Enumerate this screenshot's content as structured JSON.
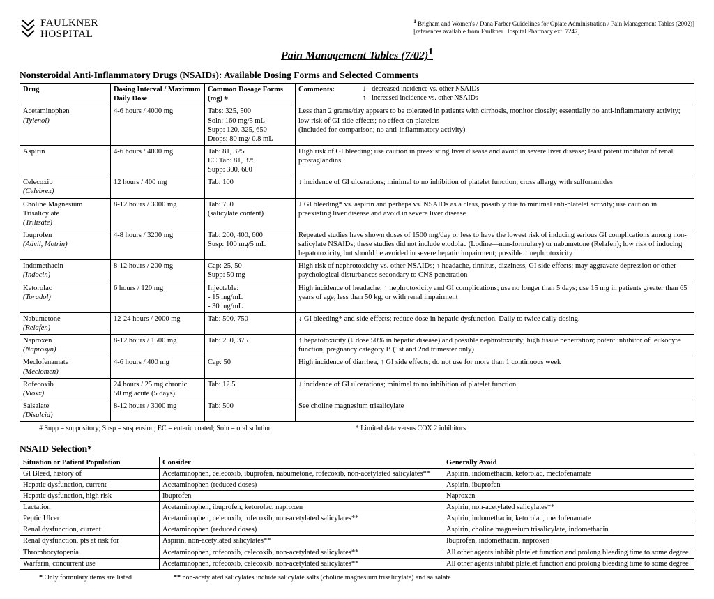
{
  "logo": {
    "line1": "FAULKNER",
    "line2": "HOSPITAL"
  },
  "citation": {
    "line1": "Brigham and Women's / Dana Farber Guidelines for Opiate Administration / Pain Management Tables (2002)]",
    "line2": "[references available from Faulkner Hospital Pharmacy ext. 7247]"
  },
  "title": "Pain Management Tables (7/02)",
  "section1_title": "Nonsteroidal Anti-Inflammatory Drugs (NSAIDs): Available Dosing Forms and Selected Comments",
  "table1": {
    "headers": {
      "drug": "Drug",
      "dosing": "Dosing Interval / Maximum Daily Dose",
      "forms": "Common Dosage Forms (mg) #",
      "comments": "Comments:",
      "legend_down": "↓ - decreased incidence vs. other NSAIDs",
      "legend_up": "↑ - increased incidence vs. other NSAIDs"
    },
    "rows": [
      {
        "generic": "Acetaminophen",
        "brand": "(Tylenol)",
        "dosing": "4-6 hours / 4000 mg",
        "forms": "Tabs: 325, 500\nSoln: 160 mg/5 mL\nSupp: 120, 325, 650\nDrops: 80 mg/ 0.8 mL",
        "comments": "Less than 2 grams/day appears to be tolerated in patients with cirrhosis, monitor closely; essentially no anti-inflammatory activity; low risk of GI side effects; no effect on platelets\n(Included for comparison; no anti-inflammatory activity)"
      },
      {
        "generic": "Aspirin",
        "brand": "",
        "dosing": "4-6 hours / 4000 mg",
        "forms": "Tab: 81, 325\nEC Tab: 81, 325\nSupp: 300, 600",
        "comments": "High risk of GI bleeding; use caution in preexisting liver disease and avoid in severe liver disease; least potent inhibitor of renal prostaglandins"
      },
      {
        "generic": "Celecoxib",
        "brand": "(Celebrex)",
        "dosing": "12 hours / 400 mg",
        "forms": "Tab: 100",
        "comments": "↓ incidence of GI ulcerations; minimal to no inhibition of platelet function; cross allergy with sulfonamides"
      },
      {
        "generic": "Choline Magnesium Trisalicylate",
        "brand": "(Trilisate)",
        "dosing": "8-12 hours / 3000 mg",
        "forms": "Tab: 750\n(salicylate content)",
        "comments": "↓ GI bleeding* vs. aspirin and perhaps vs. NSAIDs as a class, possibly due to minimal anti-platelet activity; use caution in preexisting liver disease and avoid in severe liver disease"
      },
      {
        "generic": "Ibuprofen",
        "brand": "(Advil, Motrin)",
        "dosing": "4-8 hours / 3200 mg",
        "forms": "Tab: 200, 400, 600\nSusp: 100 mg/5 mL",
        "comments": "Repeated studies have shown doses of 1500 mg/day or less to have the lowest risk of inducing serious GI complications among non-salicylate NSAIDs; these studies did not include etodolac (Lodine—non-formulary) or nabumetone (Relafen); low risk of inducing hepatotoxicity, but should be avoided in severe hepatic impairment; possible ↑ nephrotoxicity"
      },
      {
        "generic": "Indomethacin",
        "brand": "(Indocin)",
        "dosing": "8-12 hours / 200 mg",
        "forms": "Cap: 25, 50\nSupp: 50 mg",
        "comments": "High risk of nephrotoxicity vs. other NSAIDs; ↑ headache, tinnitus, dizziness, GI side effects; may aggravate depression or other psychological disturbances secondary to CNS penetration"
      },
      {
        "generic": "Ketorolac",
        "brand": "(Toradol)",
        "dosing": "6 hours / 120 mg",
        "forms": "Injectable:\n- 15 mg/mL\n- 30 mg/mL",
        "comments": "High incidence of headache; ↑ nephrotoxicity and GI complications; use no longer than 5 days; use 15 mg in patients greater than 65 years of age, less than 50 kg, or with renal impairment"
      },
      {
        "generic": "Nabumetone",
        "brand": "(Relafen)",
        "dosing": "12-24 hours / 2000 mg",
        "forms": "Tab: 500, 750",
        "comments": "↓ GI bleeding* and side effects; reduce dose in hepatic dysfunction. Daily to twice daily dosing."
      },
      {
        "generic": "Naproxen",
        "brand": "(Naprosyn)",
        "dosing": "8-12 hours / 1500 mg",
        "forms": "Tab: 250, 375",
        "comments": "↑ hepatotoxicity (↓ dose 50% in hepatic disease) and possible nephrotoxicity; high tissue penetration; potent inhibitor of leukocyte function; pregnancy category B (1st and 2nd trimester only)"
      },
      {
        "generic": "Meclofenamate",
        "brand": "(Meclomen)",
        "dosing": "4-6 hours / 400 mg",
        "forms": "Cap: 50",
        "comments": "High incidence of diarrhea, ↑ GI side effects; do not use for more than 1 continuous week"
      },
      {
        "generic": "Rofecoxib",
        "brand": "(Vioxx)",
        "dosing": "24 hours / 25 mg chronic\n50 mg acute (5 days)",
        "forms": "Tab: 12.5",
        "comments": "↓ incidence of GI ulcerations; minimal to no inhibition of platelet function"
      },
      {
        "generic": "Salsalate",
        "brand": "(Disalcid)",
        "dosing": "8-12 hours / 3000 mg",
        "forms": "Tab: 500",
        "comments": "See choline magnesium trisalicylate"
      }
    ]
  },
  "footnotes1": {
    "hash": "#  Supp = suppository; Susp = suspension; EC = enteric coated; Soln = oral solution",
    "star": "* Limited data versus COX 2 inhibitors"
  },
  "section2_title": "NSAID Selection*",
  "table2": {
    "headers": {
      "situation": "Situation or Patient Population",
      "consider": "Consider",
      "avoid": "Generally Avoid"
    },
    "rows": [
      {
        "situation": "GI Bleed, history of",
        "consider": "Acetaminophen, celecoxib, ibuprofen, nabumetone, rofecoxib, non-acetylated salicylates**",
        "avoid": "Aspirin, indomethacin, ketorolac, meclofenamate"
      },
      {
        "situation": "Hepatic dysfunction, current",
        "consider": "Acetaminophen (reduced doses)",
        "avoid": "Aspirin, ibuprofen"
      },
      {
        "situation": "Hepatic dysfunction, high risk",
        "consider": "Ibuprofen",
        "avoid": "Naproxen"
      },
      {
        "situation": "Lactation",
        "consider": "Acetaminophen, ibuprofen, ketorolac, naproxen",
        "avoid": "Aspirin, non-acetylated salicylates**"
      },
      {
        "situation": "Peptic Ulcer",
        "consider": "Acetaminophen, celecoxib, rofecoxib, non-acetylated salicylates**",
        "avoid": "Aspirin, indomethacin, ketorolac, meclofenamate"
      },
      {
        "situation": "Renal dysfunction, current",
        "consider": "Acetaminophen (reduced doses)",
        "avoid": "Aspirin, choline magnesium trisalicylate, indomethacin"
      },
      {
        "situation": "Renal dysfunction, pts at risk for",
        "consider": "Aspirin, non-acetylated salicylates**",
        "avoid": "Ibuprofen, indomethacin, naproxen"
      },
      {
        "situation": "Thrombocytopenia",
        "consider": "Acetaminophen, rofecoxib, celecoxib, non-acetylated salicylates**",
        "avoid": "All other agents inhibit platelet function and prolong bleeding time to some degree"
      },
      {
        "situation": "Warfarin, concurrent use",
        "consider": "Acetaminophen, rofecoxib, celecoxib, non-acetylated salicylates**",
        "avoid": "All other agents inhibit platelet function and prolong bleeding time to some degree"
      }
    ]
  },
  "footnotes2": {
    "star": "* Only formulary items are listed",
    "dstar": "** non-acetylated salicylates include salicylate salts (choline magnesium trisalicylate) and salsalate"
  }
}
